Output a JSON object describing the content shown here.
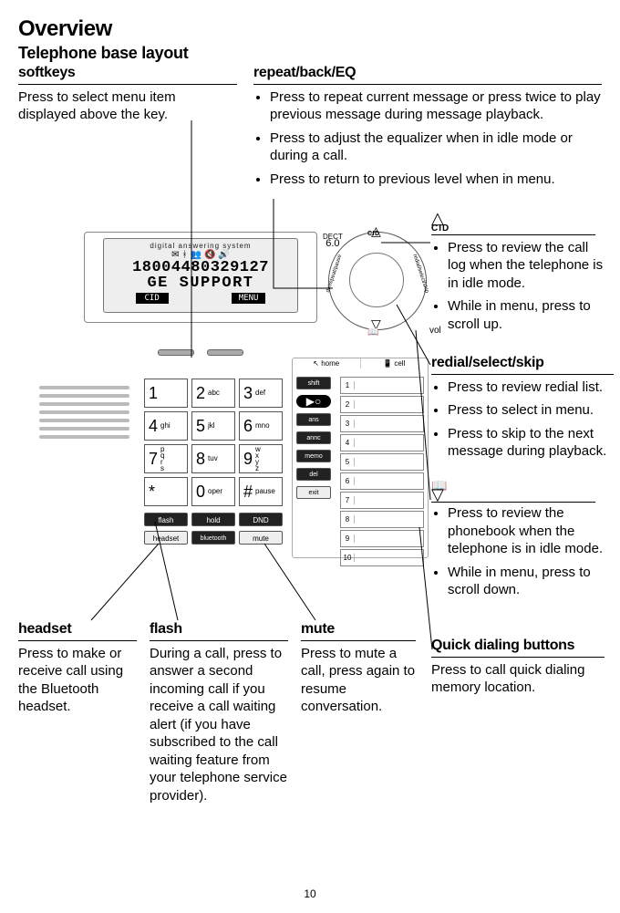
{
  "page": {
    "title": "Overview",
    "subtitle": "Telephone base layout",
    "number": "10"
  },
  "softkeys": {
    "title": "softkeys",
    "body": "Press to select menu item displayed above the key."
  },
  "repeat": {
    "title": "repeat/back/EQ",
    "items": [
      "Press to repeat current message or press twice to play previous message during message playback.",
      "Press to adjust the equalizer when in idle mode or during a call.",
      "Press to return to previous level when in menu."
    ]
  },
  "cid": {
    "icon_label": "CID",
    "items": [
      "Press to review the call log when the telephone is in idle mode.",
      "While in menu, press to scroll up."
    ]
  },
  "redial": {
    "title": "redial/select/skip",
    "items": [
      "Press to review redial list.",
      "Press to select in menu.",
      "Press to skip to the next message during playback."
    ]
  },
  "book": {
    "items": [
      "Press to review the phonebook when the telephone is in idle mode.",
      "While in menu, press to scroll down."
    ]
  },
  "headset": {
    "title": "headset",
    "body": "Press to make or receive call using the Bluetooth headset."
  },
  "flash": {
    "title": "flash",
    "body": "During a call, press to answer a second incoming call if you receive a call waiting alert (if you have subscribed to the call waiting feature from your telephone service provider)."
  },
  "mute": {
    "title": "mute",
    "body": "Press to mute a call, press again to resume conversation."
  },
  "quick": {
    "title": "Quick dialing buttons",
    "body": "Press to call quick dialing memory location."
  },
  "diagram": {
    "lcd": {
      "top_label": "digital answering system",
      "line1": "18004480329127",
      "line2": "GE SUPPORT",
      "soft_left": "CID",
      "soft_right": "MENU",
      "dect": "DECT",
      "dect6": "6.0"
    },
    "dial_curved_left": "dir/repeat/pause",
    "dial_curved_right": "redial/select/skip",
    "vol_label": "vol",
    "cid_icon": "CID",
    "keypad": [
      [
        "1",
        ""
      ],
      [
        "2",
        "abc"
      ],
      [
        "3",
        "def"
      ],
      [
        "4",
        "ghi"
      ],
      [
        "5",
        "jkl"
      ],
      [
        "6",
        "mno"
      ],
      [
        "7",
        "p q r s"
      ],
      [
        "8",
        "tuv"
      ],
      [
        "9",
        "w x y z"
      ],
      [
        "*",
        ""
      ],
      [
        "0",
        "oper"
      ],
      [
        "#",
        "pause"
      ]
    ],
    "fn_buttons": {
      "tophome": "home",
      "topcell": "cell",
      "shift": "shift",
      "ans": "ans",
      "annc": "annc",
      "memo": "memo",
      "del": "del",
      "exit": "exit",
      "flash": "flash",
      "hold": "hold",
      "dnd": "DND",
      "headset": "headset",
      "bt": "bluetooth",
      "mute": "mute"
    },
    "quick_numbers": [
      "1",
      "2",
      "3",
      "4",
      "5",
      "6",
      "7",
      "8",
      "9",
      "10"
    ]
  }
}
